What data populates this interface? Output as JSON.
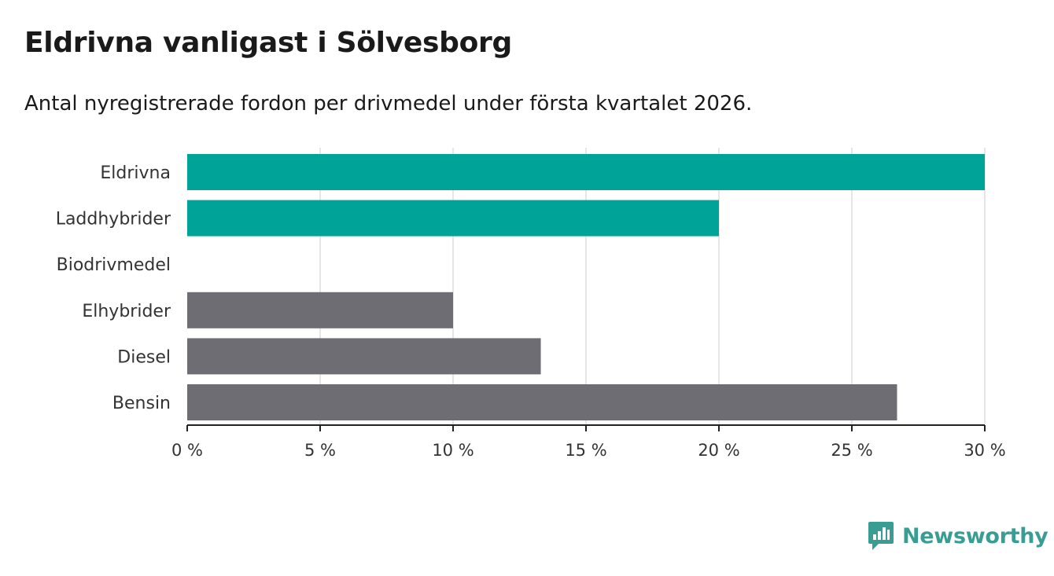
{
  "title": "Eldrivna vanligast i Sölvesborg",
  "subtitle": "Antal nyregistrerade fordon per drivmedel under första kvartalet 2026.",
  "brand": {
    "name": "Newsworthy",
    "icon": "newsworthy-logo-icon",
    "color": "#3a9d94"
  },
  "colors": {
    "highlight": "#00a398",
    "default": "#6e6d73",
    "grid": "#dddddd",
    "axis": "#222222"
  },
  "chart_data": {
    "type": "bar",
    "orientation": "horizontal",
    "title": "Eldrivna vanligast i Sölvesborg",
    "subtitle": "Antal nyregistrerade fordon per drivmedel under första kvartalet 2026.",
    "categories": [
      "Eldrivna",
      "Laddhybrider",
      "Biodrivmedel",
      "Elhybrider",
      "Diesel",
      "Bensin"
    ],
    "values": [
      30,
      20,
      0,
      10,
      13.3,
      26.7
    ],
    "highlighted": [
      true,
      true,
      true,
      false,
      false,
      false
    ],
    "unit": "%",
    "xlim": [
      0,
      30
    ],
    "xticks": [
      0,
      5,
      10,
      15,
      20,
      25,
      30
    ],
    "xtick_labels": [
      "0 %",
      "5 %",
      "10 %",
      "15 %",
      "20 %",
      "25 %",
      "30 %"
    ],
    "grid": true,
    "xlabel": "",
    "ylabel": ""
  }
}
